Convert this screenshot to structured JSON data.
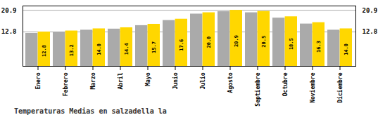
{
  "chart_data": {
    "type": "bar",
    "title": "Temperaturas Medias en salzadella la",
    "categories": [
      "Enero",
      "Febrero",
      "Marzo",
      "Abril",
      "Mayo",
      "Junio",
      "Julio",
      "Agosto",
      "Septiembre",
      "Octubre",
      "Noviembre",
      "Diciembre"
    ],
    "series": [
      {
        "color": "#AAAAAA",
        "values": [
          12.3,
          12.7,
          13.5,
          13.9,
          15.2,
          17.1,
          19.5,
          20.4,
          20.0,
          18.0,
          15.8,
          13.5
        ]
      },
      {
        "color": "#FFD700",
        "values": [
          12.8,
          13.2,
          14.0,
          14.4,
          15.7,
          17.6,
          20.0,
          20.9,
          20.5,
          18.5,
          16.3,
          14.0
        ],
        "value_labels": [
          "12.8",
          "13.2",
          "14.0",
          "14.4",
          "15.7",
          "17.6",
          "20.0",
          "20.9",
          "20.5",
          "18.5",
          "16.3",
          "14.0"
        ],
        "data_labels": true
      }
    ],
    "ylim": [
      0,
      22.5
    ],
    "yticks": [
      12.8,
      20.9
    ],
    "grid": true
  }
}
